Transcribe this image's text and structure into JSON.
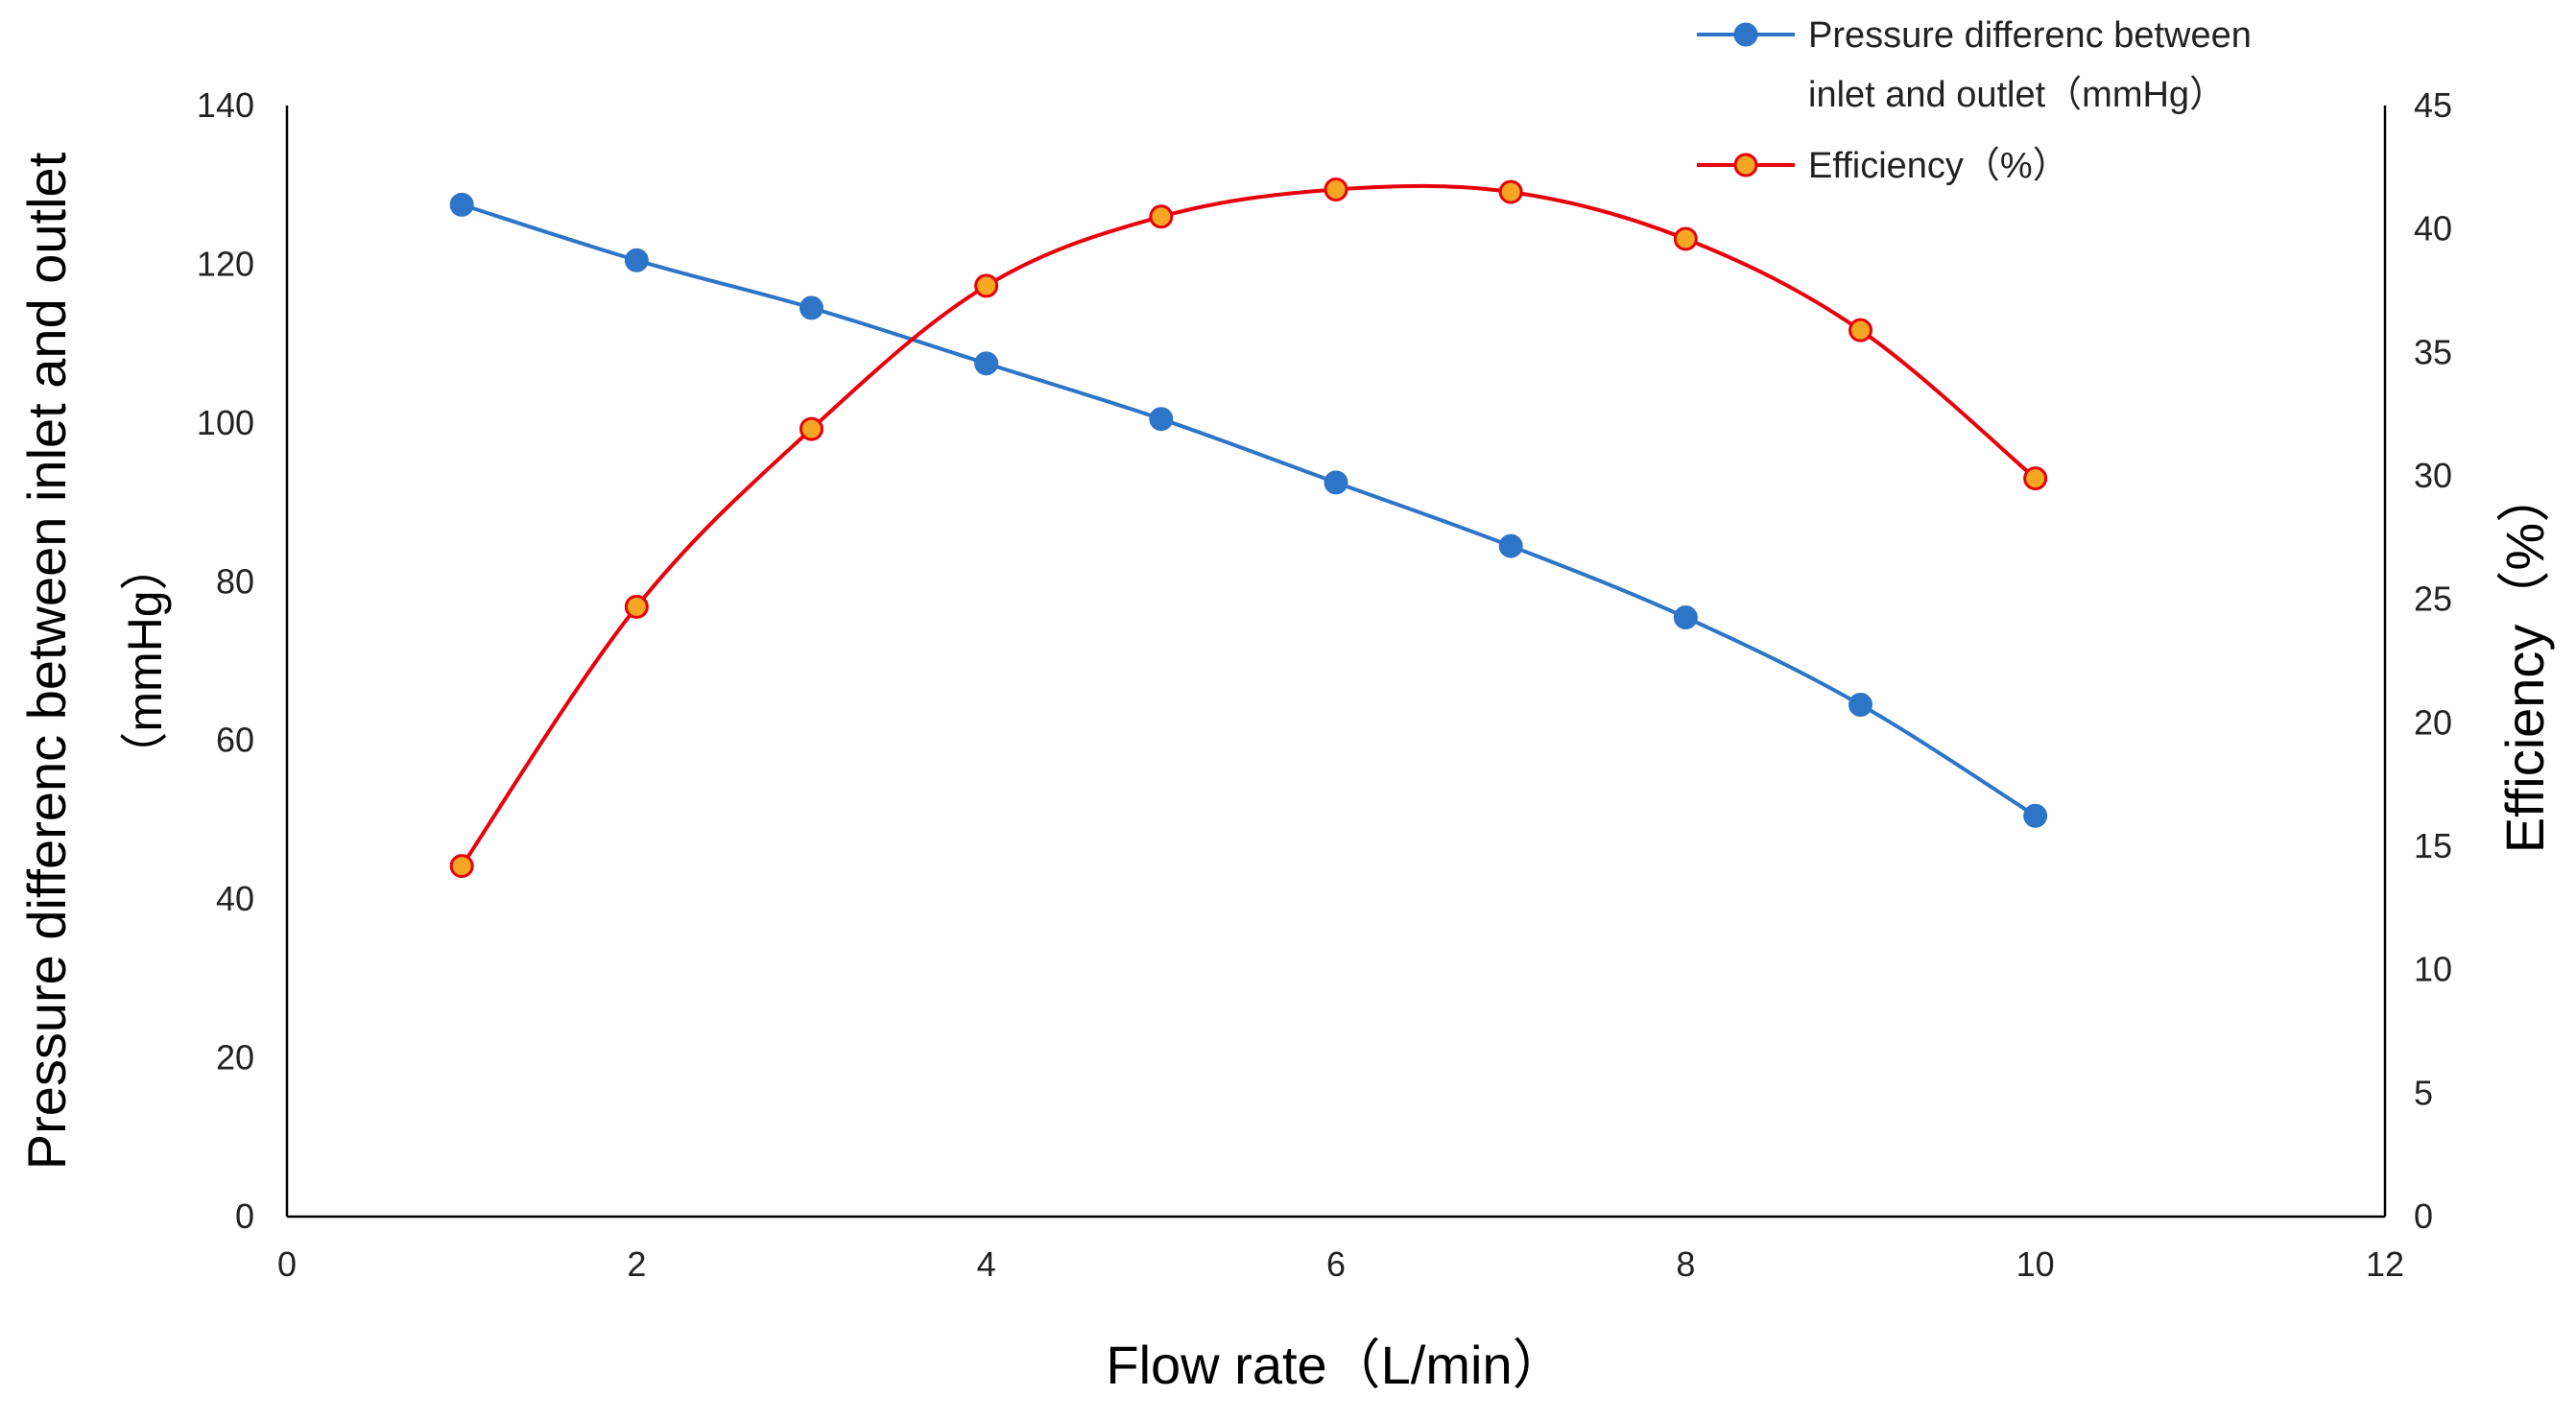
{
  "chart_data": {
    "type": "line",
    "xlabel": "Flow rate（L/min）",
    "ylabel": "Pressure differenc between inlet and outlet",
    "ylabel_unit": "（mmHg）",
    "y2label": "Efficiency（%）",
    "xlim": [
      0,
      12
    ],
    "ylim": [
      0,
      140
    ],
    "y2lim": [
      0,
      45
    ],
    "xticks": [
      "0",
      "2",
      "4",
      "6",
      "8",
      "10",
      "12"
    ],
    "yticks": [
      "0",
      "20",
      "40",
      "60",
      "80",
      "100",
      "120",
      "140"
    ],
    "y2ticks": [
      "0",
      "5",
      "10",
      "15",
      "20",
      "25",
      "30",
      "35",
      "40",
      "45"
    ],
    "grid": false,
    "legend_position": "top-right",
    "x": [
      1,
      2,
      3,
      4,
      5,
      6,
      7,
      8,
      9,
      10
    ],
    "series": [
      {
        "name": "Pressure differenc between inlet and outlet（mmHg）",
        "legend_lines": [
          "Pressure differenc between",
          "inlet and outlet（mmHg）"
        ],
        "axis": "left",
        "color": "#2E75C8",
        "marker_fill": "#2E75C8",
        "marker_edge": "#2E75C8",
        "values": [
          127.5,
          120.5,
          114.5,
          107.5,
          100.5,
          92.5,
          84.5,
          75.5,
          64.5,
          50.5
        ]
      },
      {
        "name": "Efficiency（%）",
        "legend_lines": [
          "Efficiency（%）"
        ],
        "axis": "right",
        "color": "#E8000B",
        "marker_fill": "#F5A623",
        "marker_edge": "#E8000B",
        "values": [
          14.2,
          24.7,
          31.9,
          37.7,
          40.5,
          41.6,
          41.5,
          39.6,
          35.9,
          29.9
        ]
      }
    ]
  }
}
